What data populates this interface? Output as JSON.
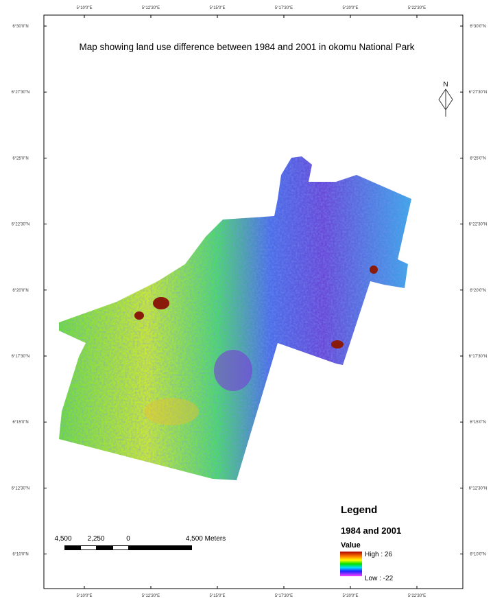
{
  "map": {
    "title": "Map showing land use difference between 1984 and 2001 in okomu National Park",
    "longitude_labels": [
      "5°10'0\"E",
      "5°12'30\"E",
      "5°15'0\"E",
      "5°17'30\"E",
      "5°20'0\"E",
      "5°22'30\"E"
    ],
    "latitude_labels": [
      "6°30'0\"N",
      "6°27'30\"N",
      "6°25'0\"N",
      "6°22'30\"N",
      "6°20'0\"N",
      "6°17'30\"N",
      "6°15'0\"N",
      "6°12'30\"N",
      "6°10'0\"N"
    ],
    "north_label": "N",
    "legend": {
      "heading": "Legend",
      "layer": "1984 and 2001",
      "field": "Value",
      "high": "High : 26",
      "low": "Low : -22"
    },
    "scale_bar": {
      "labels": [
        "4,500",
        "2,250",
        "0",
        "4,500 Meters"
      ]
    }
  }
}
